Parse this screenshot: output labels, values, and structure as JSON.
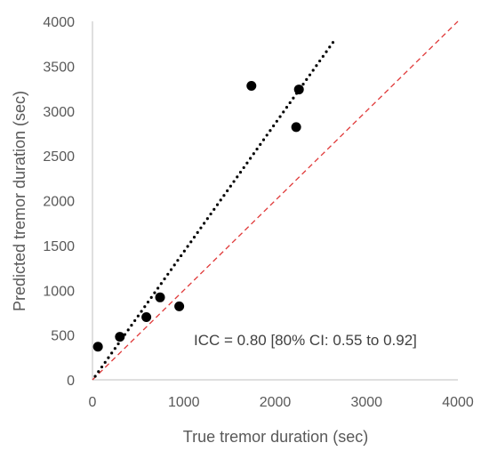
{
  "chart_data": {
    "type": "scatter",
    "xlabel": "True tremor duration (sec)",
    "ylabel": "Predicted tremor duration (sec)",
    "xlim": [
      0,
      4000
    ],
    "ylim": [
      0,
      4000
    ],
    "x_ticks": [
      "0",
      "1000",
      "2000",
      "3000",
      "4000"
    ],
    "y_ticks": [
      "0",
      "500",
      "1000",
      "1500",
      "2000",
      "2500",
      "3000",
      "3500",
      "4000"
    ],
    "grid": false,
    "legend": "none",
    "points": [
      {
        "x": 60,
        "y": 370
      },
      {
        "x": 300,
        "y": 480
      },
      {
        "x": 590,
        "y": 700
      },
      {
        "x": 740,
        "y": 920
      },
      {
        "x": 950,
        "y": 820
      },
      {
        "x": 1740,
        "y": 3280
      },
      {
        "x": 2230,
        "y": 2820
      },
      {
        "x": 2260,
        "y": 3240
      }
    ],
    "trendline": {
      "style": "dotted",
      "color": "#000000",
      "x": [
        30,
        2650
      ],
      "y": [
        40,
        3790
      ]
    },
    "identity_line": {
      "style": "dashed",
      "color": "#e03a3a",
      "x": [
        0,
        4000
      ],
      "y": [
        0,
        4000
      ]
    },
    "point_color": "#000000",
    "annotation": "ICC = 0.80 [80% CI: 0.55 to 0.92]"
  }
}
